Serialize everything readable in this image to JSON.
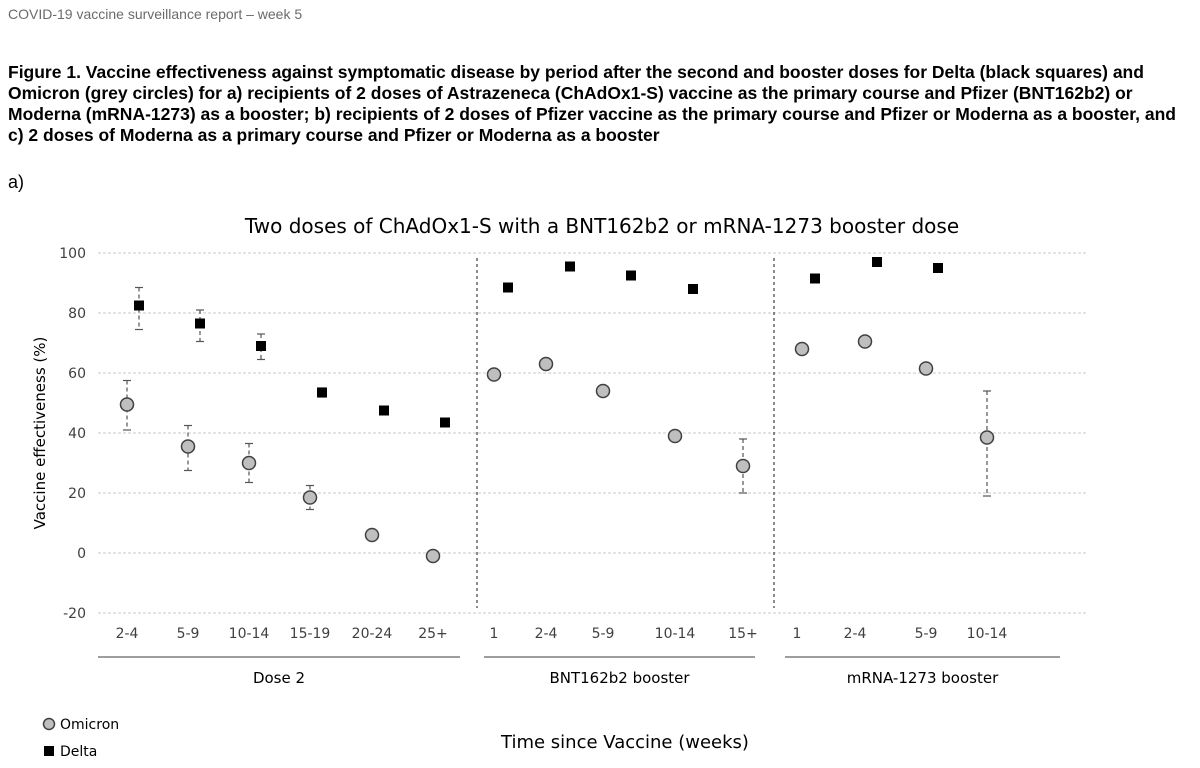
{
  "report_header": "COVID-19 vaccine surveillance report – week 5",
  "figure_caption": "Figure 1. Vaccine effectiveness against symptomatic disease by period after the second and booster doses for Delta (black squares) and Omicron (grey circles) for a) recipients of 2 doses of Astrazeneca (ChAdOx1-S) vaccine as the primary course and Pfizer (BNT162b2) or Moderna (mRNA-1273) as a booster; b) recipients of 2 doses of Pfizer vaccine as the primary course and Pfizer or Moderna as a booster, and c) 2 doses of Moderna as a primary course and Pfizer or Moderna as a booster",
  "panel_label": "a)",
  "colors": {
    "delta": "#000000",
    "omicron_fill": "#bfbfbf",
    "omicron_stroke": "#404040",
    "grid": "#c8c8c8"
  },
  "chart_data": {
    "type": "scatter",
    "title": "Two doses of ChAdOx1-S with a BNT162b2 or mRNA-1273 booster dose",
    "ylabel": "Vaccine effectiveness (%)",
    "xlabel": "Time since Vaccine (weeks)",
    "ylim": [
      -20,
      100
    ],
    "yticks": [
      100,
      80,
      60,
      40,
      20,
      0,
      -20
    ],
    "grid": true,
    "legend_position": "bottom-left",
    "groups": [
      {
        "label": "Dose 2",
        "categories": [
          "2-4",
          "5-9",
          "10-14",
          "15-19",
          "20-24",
          "25+"
        ]
      },
      {
        "label": "BNT162b2 booster",
        "categories": [
          "1",
          "2-4",
          "5-9",
          "10-14",
          "15+"
        ]
      },
      {
        "label": "mRNA-1273 booster",
        "categories": [
          "1",
          "2-4",
          "5-9",
          "10-14"
        ]
      }
    ],
    "series": [
      {
        "name": "Omicron",
        "marker": "circle",
        "values": [
          [
            49.5,
            35.5,
            30,
            18.5,
            6,
            -1
          ],
          [
            59.5,
            63,
            54,
            39,
            29
          ],
          [
            68,
            70.5,
            61.5,
            38.5
          ]
        ],
        "ci": [
          [
            [
              41,
              57.5
            ],
            [
              27.5,
              42.5
            ],
            [
              23.5,
              36.5
            ],
            [
              14.5,
              22.5
            ],
            null,
            null
          ],
          [
            null,
            null,
            null,
            null,
            [
              20,
              38
            ]
          ],
          [
            null,
            null,
            null,
            [
              19,
              54
            ]
          ]
        ]
      },
      {
        "name": "Delta",
        "marker": "square",
        "values": [
          [
            82.5,
            76.5,
            69,
            53.5,
            47.5,
            43.5
          ],
          [
            88.5,
            95.5,
            92.5,
            88
          ],
          [
            91.5,
            97,
            95
          ]
        ],
        "ci": [
          [
            [
              74.5,
              88.5
            ],
            [
              70.5,
              81
            ],
            [
              64.5,
              73
            ],
            [
              52,
              55
            ],
            null,
            null
          ],
          [
            null,
            null,
            null,
            null
          ],
          [
            null,
            null,
            null
          ]
        ]
      }
    ]
  }
}
